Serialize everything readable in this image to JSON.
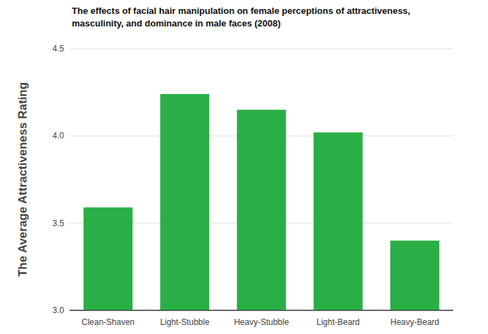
{
  "chart_data": {
    "type": "bar",
    "title": "The effects of facial hair manipulation on female perceptions of attractiveness, masculinity, and dominance in male faces (2008)",
    "y_label": "The Average Attractiveness Rating",
    "categories": [
      "Clean-Shaven",
      "Light-Stubble",
      "Heavy-Stubble",
      "Light-Beard",
      "Heavy-Beard"
    ],
    "values": [
      3.59,
      4.24,
      4.15,
      4.02,
      3.4
    ],
    "color": "#2aaf47",
    "ylim": [
      3,
      4.5
    ],
    "yticks": [
      {
        "value": 3,
        "label": "3.0"
      },
      3.5,
      {
        "value": 4,
        "label": "4.0"
      },
      4.5
    ],
    "grid": true
  }
}
